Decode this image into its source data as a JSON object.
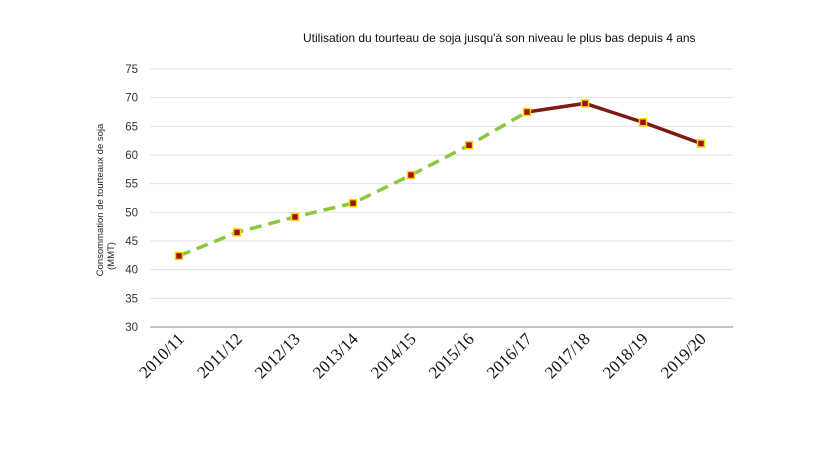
{
  "chart_data": {
    "type": "line",
    "title": "Utilisation du tourteau de soja jusqu'à son niveau le plus bas depuis 4 ans",
    "ylabel_line1": "Consommation de tourteaux de soja",
    "ylabel_line2": "(MMT)",
    "xlabel": "",
    "categories": [
      "2010/11",
      "2011/12",
      "2012/13",
      "2013/14",
      "2014/15",
      "2015/16",
      "2016/17",
      "2017/18",
      "2018/19",
      "2019/20"
    ],
    "ylim": [
      30,
      75
    ],
    "yticks": [
      30,
      35,
      40,
      45,
      50,
      55,
      60,
      65,
      70,
      75
    ],
    "grid": true,
    "series": [
      {
        "values": [
          42.4,
          46.5,
          49.2,
          51.6,
          56.5,
          61.7,
          67.5,
          null,
          null,
          null
        ],
        "color": "#8dc63f",
        "style": "dashed"
      },
      {
        "values": [
          null,
          null,
          null,
          null,
          null,
          null,
          67.5,
          69.0,
          65.7,
          62.0
        ],
        "color": "#7b1c12",
        "style": "solid"
      }
    ],
    "marker_fill": "#a50e0e",
    "marker_stroke": "#f5d800"
  }
}
